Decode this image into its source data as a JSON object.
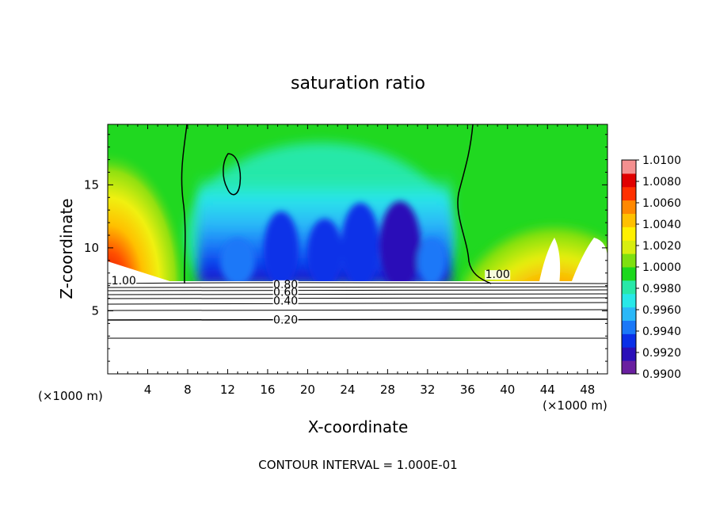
{
  "chart_data": {
    "type": "contour",
    "title": "saturation ratio",
    "xlabel": "X-coordinate",
    "ylabel": "Z-coordinate",
    "x_unit_left": "(×1000 m)",
    "x_unit_right": "(×1000 m)",
    "xlim": [
      0,
      50
    ],
    "ylim": [
      0,
      19.8
    ],
    "x_ticks": [
      4,
      8,
      12,
      16,
      20,
      24,
      28,
      32,
      36,
      40,
      44,
      48
    ],
    "x_tick_labels": [
      "4",
      "8",
      "12",
      "16",
      "20",
      "24",
      "28",
      "32",
      "36",
      "40",
      "44",
      "48"
    ],
    "y_ticks": [
      5,
      10,
      15
    ],
    "y_tick_labels": [
      "5",
      "10",
      "15"
    ],
    "colorbar": {
      "min": 0.99,
      "max": 1.01,
      "tick_labels": [
        "1.0100",
        "1.0080",
        "1.0060",
        "1.0040",
        "1.0020",
        "1.0000",
        "0.9980",
        "0.9960",
        "0.9940",
        "0.9920",
        "0.9900"
      ],
      "colors": [
        "#6a1fa0",
        "#2a10b8",
        "#0a30e8",
        "#1a78f8",
        "#2ab8f8",
        "#28e8e8",
        "#28e8a8",
        "#1cd81c",
        "#7ee010",
        "#d8ee10",
        "#fff000",
        "#ffc000",
        "#ff8800",
        "#ff3000",
        "#e00000",
        "#f49090"
      ]
    },
    "contour_labels": [
      {
        "text": "1.00",
        "x": 1.6,
        "z": 7.1
      },
      {
        "text": "1.00",
        "x": 39.0,
        "z": 7.6
      },
      {
        "text": "0.80",
        "x": 17.8,
        "z": 6.8
      },
      {
        "text": "0.60",
        "x": 17.8,
        "z": 6.2
      },
      {
        "text": "0.40",
        "x": 17.8,
        "z": 5.5
      },
      {
        "text": "0.20",
        "x": 17.8,
        "z": 4.0
      }
    ],
    "contour_interval_note": "CONTOUR INTERVAL = 1.000E-01"
  }
}
